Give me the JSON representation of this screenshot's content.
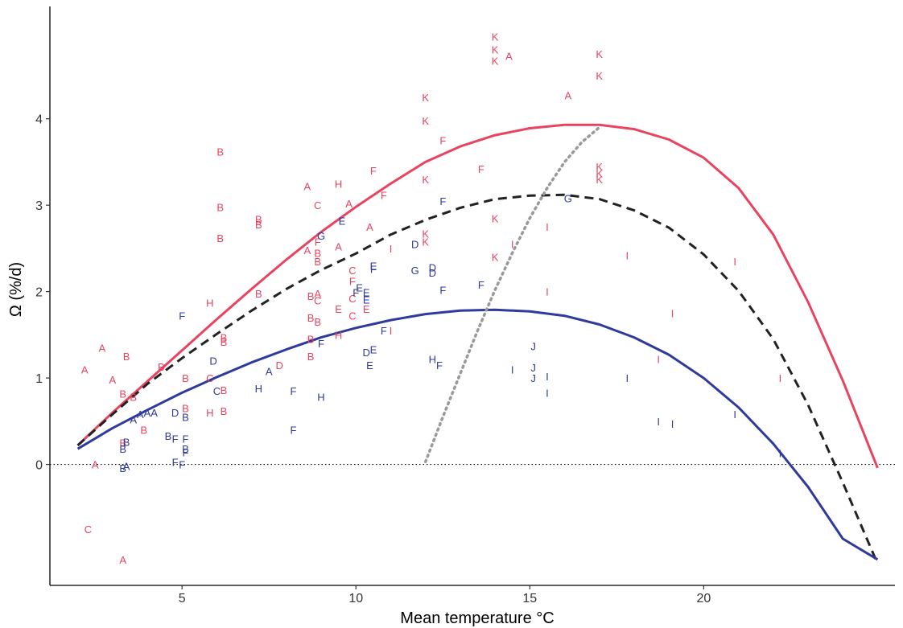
{
  "chart_data": {
    "type": "scatter",
    "xlabel": "Mean temperature °C",
    "ylabel": "Ω (%/d)",
    "xlim": [
      1.2,
      25.5
    ],
    "ylim": [
      -1.4,
      5.3
    ],
    "x_ticks": [
      5,
      10,
      15,
      20
    ],
    "x_tick_labels": [
      "5",
      "10",
      "15",
      "20"
    ],
    "y_ticks": [
      0,
      1,
      2,
      3,
      4
    ],
    "y_tick_labels": [
      "0",
      "1",
      "2",
      "3",
      "4"
    ],
    "grid": false,
    "legend": "none",
    "colors": {
      "red": "#e8445f",
      "blue": "#2e3a9c",
      "dashed": "#222222",
      "dotted": "#9a9a9a",
      "zero_line": "#000000"
    },
    "reference_line_y": 0,
    "curves": [
      {
        "style": "solid",
        "color": "red",
        "x": [
          2,
          3,
          4,
          5,
          6,
          7,
          8,
          9,
          10,
          11,
          12,
          13,
          14,
          15,
          16,
          17,
          18,
          19,
          20,
          21,
          22,
          23,
          24,
          25
        ],
        "y": [
          0.22,
          0.6,
          0.96,
          1.32,
          1.68,
          2.03,
          2.37,
          2.69,
          2.98,
          3.25,
          3.5,
          3.68,
          3.81,
          3.89,
          3.93,
          3.93,
          3.88,
          3.76,
          3.55,
          3.2,
          2.66,
          1.88,
          0.97,
          -0.04
        ]
      },
      {
        "style": "dashed",
        "color": "dashed",
        "x": [
          2,
          3,
          4,
          5,
          6,
          7,
          8,
          9,
          10,
          11,
          12,
          13,
          14,
          15,
          16,
          17,
          18,
          19,
          20,
          21,
          22,
          23,
          24,
          25
        ],
        "y": [
          0.22,
          0.58,
          0.93,
          1.23,
          1.51,
          1.78,
          2.03,
          2.25,
          2.44,
          2.66,
          2.83,
          2.97,
          3.07,
          3.11,
          3.12,
          3.07,
          2.94,
          2.74,
          2.43,
          2.01,
          1.45,
          0.69,
          -0.21,
          -1.15
        ]
      },
      {
        "style": "solid",
        "color": "blue",
        "x": [
          2,
          3,
          4,
          5,
          6,
          7,
          8,
          9,
          10,
          11,
          12,
          13,
          14,
          15,
          16,
          17,
          18,
          19,
          20,
          21,
          22,
          23,
          24,
          25
        ],
        "y": [
          0.18,
          0.42,
          0.63,
          0.83,
          1.01,
          1.18,
          1.33,
          1.47,
          1.58,
          1.67,
          1.74,
          1.78,
          1.79,
          1.77,
          1.72,
          1.62,
          1.47,
          1.27,
          1.0,
          0.66,
          0.24,
          -0.26,
          -0.86,
          -1.1
        ]
      },
      {
        "style": "dotted",
        "color": "dotted",
        "x": [
          12.0,
          12.5,
          13.0,
          13.5,
          14.0,
          14.5,
          15.0,
          15.5,
          16.0,
          16.5,
          17.0
        ],
        "y": [
          0.03,
          0.55,
          1.05,
          1.55,
          2.02,
          2.45,
          2.85,
          3.2,
          3.5,
          3.73,
          3.9
        ]
      }
    ],
    "points": [
      {
        "label": "A",
        "color": "red",
        "x": 2.2,
        "y": 1.1
      },
      {
        "label": "A",
        "color": "red",
        "x": 2.7,
        "y": 1.35
      },
      {
        "label": "A",
        "color": "red",
        "x": 3.0,
        "y": 0.98
      },
      {
        "label": "A",
        "color": "red",
        "x": 2.5,
        "y": 0.0
      },
      {
        "label": "A",
        "color": "red",
        "x": 3.3,
        "y": -1.1
      },
      {
        "label": "C",
        "color": "red",
        "x": 2.3,
        "y": -0.75
      },
      {
        "label": "B",
        "color": "red",
        "x": 3.4,
        "y": 1.25
      },
      {
        "label": "B",
        "color": "red",
        "x": 3.3,
        "y": 0.82
      },
      {
        "label": "B",
        "color": "red",
        "x": 3.6,
        "y": 0.78
      },
      {
        "label": "B",
        "color": "red",
        "x": 3.9,
        "y": 0.4
      },
      {
        "label": "B",
        "color": "red",
        "x": 3.3,
        "y": 0.25
      },
      {
        "label": "B",
        "color": "red",
        "x": 4.4,
        "y": 1.13
      },
      {
        "label": "B",
        "color": "red",
        "x": 5.1,
        "y": 1.0
      },
      {
        "label": "B",
        "color": "red",
        "x": 5.1,
        "y": 0.65
      },
      {
        "label": "C",
        "color": "red",
        "x": 5.8,
        "y": 1.0
      },
      {
        "label": "H",
        "color": "red",
        "x": 5.8,
        "y": 0.6
      },
      {
        "label": "H",
        "color": "red",
        "x": 5.8,
        "y": 1.87
      },
      {
        "label": "B",
        "color": "red",
        "x": 6.2,
        "y": 0.62
      },
      {
        "label": "B",
        "color": "red",
        "x": 6.2,
        "y": 0.86
      },
      {
        "label": "B",
        "color": "red",
        "x": 6.2,
        "y": 1.42
      },
      {
        "label": "B",
        "color": "red",
        "x": 6.2,
        "y": 1.47
      },
      {
        "label": "B",
        "color": "red",
        "x": 6.1,
        "y": 2.62
      },
      {
        "label": "B",
        "color": "red",
        "x": 6.1,
        "y": 2.98
      },
      {
        "label": "B",
        "color": "red",
        "x": 6.1,
        "y": 3.62
      },
      {
        "label": "B",
        "color": "red",
        "x": 7.2,
        "y": 2.78
      },
      {
        "label": "B",
        "color": "red",
        "x": 7.2,
        "y": 2.84
      },
      {
        "label": "B",
        "color": "red",
        "x": 7.2,
        "y": 1.98
      },
      {
        "label": "D",
        "color": "red",
        "x": 7.8,
        "y": 1.15
      },
      {
        "label": "A",
        "color": "red",
        "x": 8.6,
        "y": 3.22
      },
      {
        "label": "A",
        "color": "red",
        "x": 8.6,
        "y": 2.48
      },
      {
        "label": "B",
        "color": "red",
        "x": 8.9,
        "y": 2.45
      },
      {
        "label": "B",
        "color": "red",
        "x": 8.9,
        "y": 2.35
      },
      {
        "label": "F",
        "color": "red",
        "x": 8.9,
        "y": 2.58
      },
      {
        "label": "C",
        "color": "red",
        "x": 8.9,
        "y": 3.0
      },
      {
        "label": "B",
        "color": "red",
        "x": 8.7,
        "y": 1.95
      },
      {
        "label": "A",
        "color": "red",
        "x": 8.9,
        "y": 1.98
      },
      {
        "label": "C",
        "color": "red",
        "x": 8.9,
        "y": 1.9
      },
      {
        "label": "B",
        "color": "red",
        "x": 8.7,
        "y": 1.7
      },
      {
        "label": "B",
        "color": "red",
        "x": 8.9,
        "y": 1.65
      },
      {
        "label": "B",
        "color": "red",
        "x": 8.7,
        "y": 1.45
      },
      {
        "label": "B",
        "color": "red",
        "x": 8.7,
        "y": 1.25
      },
      {
        "label": "H",
        "color": "red",
        "x": 9.5,
        "y": 3.25
      },
      {
        "label": "A",
        "color": "red",
        "x": 9.8,
        "y": 3.02
      },
      {
        "label": "A",
        "color": "red",
        "x": 9.5,
        "y": 2.52
      },
      {
        "label": "C",
        "color": "red",
        "x": 9.9,
        "y": 2.25
      },
      {
        "label": "F",
        "color": "red",
        "x": 9.9,
        "y": 2.12
      },
      {
        "label": "E",
        "color": "red",
        "x": 9.5,
        "y": 1.8
      },
      {
        "label": "C",
        "color": "red",
        "x": 9.9,
        "y": 1.92
      },
      {
        "label": "C",
        "color": "red",
        "x": 9.9,
        "y": 1.72
      },
      {
        "label": "H",
        "color": "red",
        "x": 9.5,
        "y": 1.5
      },
      {
        "label": "E",
        "color": "red",
        "x": 10.3,
        "y": 1.8
      },
      {
        "label": "F",
        "color": "red",
        "x": 10.5,
        "y": 3.4
      },
      {
        "label": "A",
        "color": "red",
        "x": 10.4,
        "y": 2.75
      },
      {
        "label": "F",
        "color": "red",
        "x": 10.8,
        "y": 3.12
      },
      {
        "label": "I",
        "color": "red",
        "x": 11.0,
        "y": 2.5
      },
      {
        "label": "I",
        "color": "red",
        "x": 11.0,
        "y": 1.55
      },
      {
        "label": "K",
        "color": "red",
        "x": 12.0,
        "y": 4.25
      },
      {
        "label": "K",
        "color": "red",
        "x": 12.0,
        "y": 3.98
      },
      {
        "label": "K",
        "color": "red",
        "x": 12.0,
        "y": 3.3
      },
      {
        "label": "K",
        "color": "red",
        "x": 12.0,
        "y": 2.67
      },
      {
        "label": "K",
        "color": "red",
        "x": 12.0,
        "y": 2.58
      },
      {
        "label": "F",
        "color": "red",
        "x": 12.5,
        "y": 3.75
      },
      {
        "label": "F",
        "color": "red",
        "x": 13.6,
        "y": 3.42
      },
      {
        "label": "K",
        "color": "red",
        "x": 14.0,
        "y": 4.95
      },
      {
        "label": "K",
        "color": "red",
        "x": 14.0,
        "y": 4.8
      },
      {
        "label": "K",
        "color": "red",
        "x": 14.0,
        "y": 4.67
      },
      {
        "label": "A",
        "color": "red",
        "x": 14.4,
        "y": 4.73
      },
      {
        "label": "K",
        "color": "red",
        "x": 14.0,
        "y": 2.85
      },
      {
        "label": "K",
        "color": "red",
        "x": 14.0,
        "y": 2.4
      },
      {
        "label": "I",
        "color": "red",
        "x": 14.5,
        "y": 2.55
      },
      {
        "label": "I",
        "color": "red",
        "x": 15.5,
        "y": 2.75
      },
      {
        "label": "I",
        "color": "red",
        "x": 15.5,
        "y": 2.0
      },
      {
        "label": "A",
        "color": "red",
        "x": 16.1,
        "y": 4.27
      },
      {
        "label": "K",
        "color": "red",
        "x": 17.0,
        "y": 4.75
      },
      {
        "label": "K",
        "color": "red",
        "x": 17.0,
        "y": 4.5
      },
      {
        "label": "K",
        "color": "red",
        "x": 17.0,
        "y": 3.45
      },
      {
        "label": "K",
        "color": "red",
        "x": 17.0,
        "y": 3.37
      },
      {
        "label": "K",
        "color": "red",
        "x": 17.0,
        "y": 3.3
      },
      {
        "label": "I",
        "color": "red",
        "x": 17.8,
        "y": 2.42
      },
      {
        "label": "I",
        "color": "red",
        "x": 18.7,
        "y": 1.22
      },
      {
        "label": "I",
        "color": "red",
        "x": 19.1,
        "y": 1.75
      },
      {
        "label": "I",
        "color": "red",
        "x": 20.9,
        "y": 2.35
      },
      {
        "label": "I",
        "color": "red",
        "x": 22.2,
        "y": 1.0
      },
      {
        "label": "F",
        "color": "blue",
        "x": 5.0,
        "y": 1.72
      },
      {
        "label": "D",
        "color": "blue",
        "x": 5.9,
        "y": 1.2
      },
      {
        "label": "C",
        "color": "blue",
        "x": 6.0,
        "y": 0.85
      },
      {
        "label": "A",
        "color": "blue",
        "x": 7.5,
        "y": 1.08
      },
      {
        "label": "H",
        "color": "blue",
        "x": 7.2,
        "y": 0.88
      },
      {
        "label": "F",
        "color": "blue",
        "x": 8.2,
        "y": 0.85
      },
      {
        "label": "H",
        "color": "blue",
        "x": 9.0,
        "y": 0.78
      },
      {
        "label": "F",
        "color": "blue",
        "x": 8.2,
        "y": 0.4
      },
      {
        "label": "F",
        "color": "blue",
        "x": 9.0,
        "y": 1.4
      },
      {
        "label": "E",
        "color": "blue",
        "x": 9.6,
        "y": 2.82
      },
      {
        "label": "G",
        "color": "blue",
        "x": 9.0,
        "y": 2.65
      },
      {
        "label": "E",
        "color": "blue",
        "x": 10.1,
        "y": 2.05
      },
      {
        "label": "F",
        "color": "blue",
        "x": 10.0,
        "y": 1.99
      },
      {
        "label": "E",
        "color": "blue",
        "x": 10.3,
        "y": 1.99
      },
      {
        "label": "E",
        "color": "blue",
        "x": 10.3,
        "y": 1.91
      },
      {
        "label": "E",
        "color": "blue",
        "x": 10.5,
        "y": 2.3
      },
      {
        "label": "F",
        "color": "blue",
        "x": 10.5,
        "y": 2.26
      },
      {
        "label": "D",
        "color": "blue",
        "x": 10.3,
        "y": 1.3
      },
      {
        "label": "E",
        "color": "blue",
        "x": 10.5,
        "y": 1.33
      },
      {
        "label": "E",
        "color": "blue",
        "x": 10.4,
        "y": 1.15
      },
      {
        "label": "F",
        "color": "blue",
        "x": 10.8,
        "y": 1.55
      },
      {
        "label": "D",
        "color": "blue",
        "x": 11.7,
        "y": 2.55
      },
      {
        "label": "G",
        "color": "blue",
        "x": 11.7,
        "y": 2.25
      },
      {
        "label": "D",
        "color": "blue",
        "x": 12.2,
        "y": 2.28
      },
      {
        "label": "D",
        "color": "blue",
        "x": 12.2,
        "y": 2.22
      },
      {
        "label": "F",
        "color": "blue",
        "x": 12.5,
        "y": 3.05
      },
      {
        "label": "F",
        "color": "blue",
        "x": 12.5,
        "y": 2.02
      },
      {
        "label": "F",
        "color": "blue",
        "x": 13.6,
        "y": 2.08
      },
      {
        "label": "H",
        "color": "blue",
        "x": 12.2,
        "y": 1.22
      },
      {
        "label": "F",
        "color": "blue",
        "x": 12.4,
        "y": 1.15
      },
      {
        "label": "G",
        "color": "blue",
        "x": 16.1,
        "y": 3.08
      },
      {
        "label": "J",
        "color": "blue",
        "x": 15.1,
        "y": 1.37
      },
      {
        "label": "J",
        "color": "blue",
        "x": 15.1,
        "y": 1.12
      },
      {
        "label": "J",
        "color": "blue",
        "x": 15.1,
        "y": 1.0
      },
      {
        "label": "I",
        "color": "blue",
        "x": 14.5,
        "y": 1.1
      },
      {
        "label": "I",
        "color": "blue",
        "x": 15.5,
        "y": 1.02
      },
      {
        "label": "I",
        "color": "blue",
        "x": 15.5,
        "y": 0.83
      },
      {
        "label": "I",
        "color": "blue",
        "x": 17.8,
        "y": 1.0
      },
      {
        "label": "I",
        "color": "blue",
        "x": 18.7,
        "y": 0.5
      },
      {
        "label": "I",
        "color": "blue",
        "x": 19.1,
        "y": 0.47
      },
      {
        "label": "I",
        "color": "blue",
        "x": 20.9,
        "y": 0.58
      },
      {
        "label": "I",
        "color": "blue",
        "x": 22.2,
        "y": 0.13
      },
      {
        "label": "A",
        "color": "blue",
        "x": 3.6,
        "y": 0.52
      },
      {
        "label": "A",
        "color": "blue",
        "x": 3.8,
        "y": 0.58
      },
      {
        "label": "A",
        "color": "blue",
        "x": 4.0,
        "y": 0.6
      },
      {
        "label": "A",
        "color": "blue",
        "x": 4.2,
        "y": 0.6
      },
      {
        "label": "B",
        "color": "blue",
        "x": 3.4,
        "y": 0.26
      },
      {
        "label": "B",
        "color": "blue",
        "x": 3.3,
        "y": 0.18
      },
      {
        "label": "A",
        "color": "blue",
        "x": 3.4,
        "y": -0.02
      },
      {
        "label": "B",
        "color": "blue",
        "x": 3.3,
        "y": -0.04
      },
      {
        "label": "D",
        "color": "blue",
        "x": 4.8,
        "y": 0.6
      },
      {
        "label": "B",
        "color": "blue",
        "x": 5.1,
        "y": 0.55
      },
      {
        "label": "B",
        "color": "blue",
        "x": 4.6,
        "y": 0.33
      },
      {
        "label": "F",
        "color": "blue",
        "x": 4.8,
        "y": 0.3
      },
      {
        "label": "F",
        "color": "blue",
        "x": 5.1,
        "y": 0.3
      },
      {
        "label": "B",
        "color": "blue",
        "x": 5.1,
        "y": 0.18
      },
      {
        "label": "F",
        "color": "blue",
        "x": 5.1,
        "y": 0.14
      },
      {
        "label": "F",
        "color": "blue",
        "x": 4.8,
        "y": 0.03
      },
      {
        "label": "F",
        "color": "blue",
        "x": 5.0,
        "y": 0.0
      }
    ]
  }
}
